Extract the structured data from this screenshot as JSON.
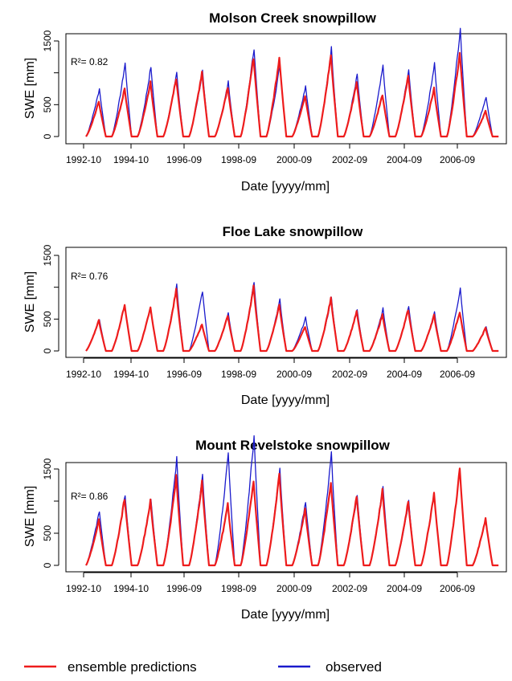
{
  "colors": {
    "predicted": "#ee1c1c",
    "observed": "#1a1acc",
    "axis": "#000000"
  },
  "legend": {
    "position": "bottom-center",
    "items": [
      {
        "label": "ensemble predictions",
        "color": "#ee1c1c"
      },
      {
        "label": "observed",
        "color": "#1a1acc"
      }
    ]
  },
  "chart_data": [
    {
      "type": "line",
      "title": "Molson Creek snowpillow",
      "xlabel": "Date [yyyy/mm]",
      "ylabel": "SWE [mm]",
      "annotation": "R²= 0.82",
      "x_ticks": [
        "1992-10",
        "1994-10",
        "1996-09",
        "1998-09",
        "2000-09",
        "2002-09",
        "2004-09",
        "2006-09"
      ],
      "y_ticks": [
        0,
        500,
        1000,
        1500
      ],
      "y_tick_labels": [
        "0",
        "500",
        "",
        "1500"
      ],
      "xlim": [
        1992.5,
        2008.9
      ],
      "ylim": [
        -50,
        2000
      ],
      "water_years": [
        1993,
        1994,
        1995,
        1996,
        1997,
        1998,
        1999,
        2000,
        2001,
        2002,
        2003,
        2004,
        2005,
        2006,
        2007,
        2008
      ],
      "series": [
        {
          "name": "ensemble predictions",
          "peaks": [
            550,
            750,
            850,
            920,
            1020,
            780,
            1250,
            1250,
            650,
            1280,
            860,
            660,
            950,
            750,
            1330,
            400
          ]
        },
        {
          "name": "observed",
          "peaks": [
            750,
            1150,
            1100,
            1000,
            1020,
            850,
            1400,
            1120,
            800,
            1380,
            970,
            1100,
            1050,
            1150,
            1700,
            630
          ]
        }
      ]
    },
    {
      "type": "line",
      "title": "Floe Lake snowpillow",
      "xlabel": "Date [yyyy/mm]",
      "ylabel": "SWE [mm]",
      "annotation": "R²= 0.76",
      "x_ticks": [
        "1992-10",
        "1994-10",
        "1996-09",
        "1998-09",
        "2000-09",
        "2002-09",
        "2004-09",
        "2006-09"
      ],
      "y_ticks": [
        0,
        500,
        1000,
        1500
      ],
      "y_tick_labels": [
        "0",
        "500",
        "",
        "1500"
      ],
      "xlim": [
        1992.5,
        2008.9
      ],
      "ylim": [
        -50,
        2000
      ],
      "water_years": [
        1993,
        1994,
        1995,
        1996,
        1997,
        1998,
        1999,
        2000,
        2001,
        2002,
        2003,
        2004,
        2005,
        2006,
        2007,
        2008
      ],
      "series": [
        {
          "name": "ensemble predictions",
          "peaks": [
            480,
            730,
            690,
            950,
            420,
            560,
            1000,
            720,
            380,
            820,
            620,
            570,
            650,
            560,
            620,
            360
          ]
        },
        {
          "name": "observed",
          "peaks": [
            500,
            null,
            null,
            1020,
            950,
            600,
            1080,
            800,
            520,
            830,
            650,
            660,
            700,
            600,
            980,
            380
          ]
        }
      ]
    },
    {
      "type": "line",
      "title": "Mount Revelstoke snowpillow",
      "xlabel": "Date [yyyy/mm]",
      "ylabel": "SWE [mm]",
      "annotation": "R²= 0.86",
      "x_ticks": [
        "1992-10",
        "1994-10",
        "1996-09",
        "1998-09",
        "2000-09",
        "2002-09",
        "2004-09",
        "2006-09"
      ],
      "y_ticks": [
        0,
        500,
        1000,
        1500
      ],
      "y_tick_labels": [
        "0",
        "500",
        "",
        "1500"
      ],
      "xlim": [
        1992.5,
        2008.9
      ],
      "ylim": [
        -50,
        2000
      ],
      "water_years": [
        1993,
        1994,
        1995,
        1996,
        1997,
        1998,
        1999,
        2000,
        2001,
        2002,
        2003,
        2004,
        2005,
        2006,
        2007,
        2008
      ],
      "series": [
        {
          "name": "ensemble predictions",
          "peaks": [
            700,
            1050,
            1000,
            1380,
            1300,
            950,
            1330,
            1400,
            870,
            1300,
            1080,
            1160,
            1000,
            1130,
            1500,
            730
          ]
        },
        {
          "name": "observed",
          "peaks": [
            850,
            1100,
            1050,
            1650,
            1400,
            1750,
            2020,
            1500,
            1000,
            1720,
            1100,
            1250,
            1000,
            null,
            null,
            null
          ]
        }
      ]
    }
  ]
}
